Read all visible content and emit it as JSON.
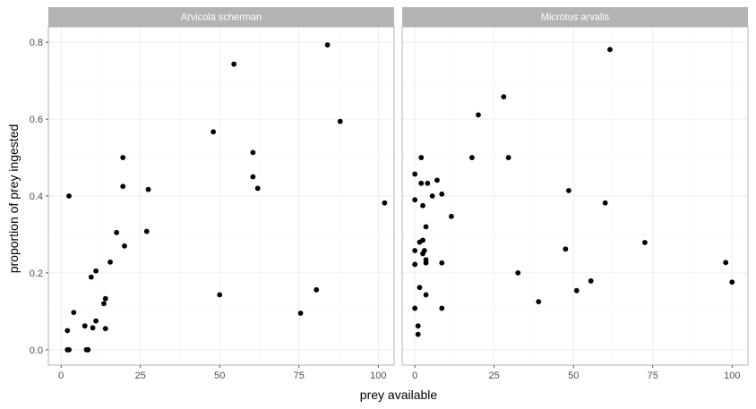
{
  "chart_data": {
    "type": "scatter",
    "xlabel": "prey available",
    "ylabel": "proportion of prey ingested",
    "xlim": [
      -4,
      105
    ],
    "ylim": [
      -0.04,
      0.84
    ],
    "x_ticks": [
      0,
      25,
      50,
      75,
      100
    ],
    "y_ticks": [
      0.0,
      0.2,
      0.4,
      0.6,
      0.8
    ],
    "x_tick_labels": [
      "0",
      "25",
      "50",
      "75",
      "100"
    ],
    "y_tick_labels": [
      "0.0",
      "0.2",
      "0.4",
      "0.6",
      "0.8"
    ],
    "grid": true,
    "point_color": "#000000",
    "panels": [
      {
        "title": "Arvicola scherman",
        "points": [
          {
            "x": 2,
            "y": 0.0
          },
          {
            "x": 2.5,
            "y": 0.0
          },
          {
            "x": 8,
            "y": 0.0
          },
          {
            "x": 8.5,
            "y": 0.0
          },
          {
            "x": 2,
            "y": 0.05
          },
          {
            "x": 4,
            "y": 0.097
          },
          {
            "x": 7.5,
            "y": 0.062
          },
          {
            "x": 10,
            "y": 0.057
          },
          {
            "x": 14,
            "y": 0.055
          },
          {
            "x": 11,
            "y": 0.075
          },
          {
            "x": 13.5,
            "y": 0.12
          },
          {
            "x": 14,
            "y": 0.133
          },
          {
            "x": 9.5,
            "y": 0.189
          },
          {
            "x": 11,
            "y": 0.205
          },
          {
            "x": 15.5,
            "y": 0.228
          },
          {
            "x": 20,
            "y": 0.27
          },
          {
            "x": 17.5,
            "y": 0.305
          },
          {
            "x": 27,
            "y": 0.308
          },
          {
            "x": 2.5,
            "y": 0.4
          },
          {
            "x": 19.5,
            "y": 0.5
          },
          {
            "x": 19.5,
            "y": 0.425
          },
          {
            "x": 27.5,
            "y": 0.417
          },
          {
            "x": 48,
            "y": 0.567
          },
          {
            "x": 54.5,
            "y": 0.743
          },
          {
            "x": 60.5,
            "y": 0.513
          },
          {
            "x": 60.5,
            "y": 0.45
          },
          {
            "x": 62,
            "y": 0.42
          },
          {
            "x": 50,
            "y": 0.143
          },
          {
            "x": 75.5,
            "y": 0.095
          },
          {
            "x": 80.5,
            "y": 0.156
          },
          {
            "x": 84,
            "y": 0.793
          },
          {
            "x": 88,
            "y": 0.594
          },
          {
            "x": 102,
            "y": 0.382
          }
        ]
      },
      {
        "title": "Microtus arvalis",
        "points": [
          {
            "x": 0,
            "y": 0.457
          },
          {
            "x": 0,
            "y": 0.39
          },
          {
            "x": 0,
            "y": 0.258
          },
          {
            "x": 0,
            "y": 0.222
          },
          {
            "x": 0,
            "y": 0.108
          },
          {
            "x": 1,
            "y": 0.04
          },
          {
            "x": 1,
            "y": 0.062
          },
          {
            "x": 1.5,
            "y": 0.162
          },
          {
            "x": 1.5,
            "y": 0.28
          },
          {
            "x": 2,
            "y": 0.5
          },
          {
            "x": 2,
            "y": 0.433
          },
          {
            "x": 2.5,
            "y": 0.375
          },
          {
            "x": 2.5,
            "y": 0.285
          },
          {
            "x": 2.5,
            "y": 0.25
          },
          {
            "x": 3,
            "y": 0.258
          },
          {
            "x": 3.5,
            "y": 0.32
          },
          {
            "x": 3.5,
            "y": 0.234
          },
          {
            "x": 3.5,
            "y": 0.226
          },
          {
            "x": 4,
            "y": 0.433
          },
          {
            "x": 3.5,
            "y": 0.143
          },
          {
            "x": 5.5,
            "y": 0.4
          },
          {
            "x": 7,
            "y": 0.441
          },
          {
            "x": 8.5,
            "y": 0.405
          },
          {
            "x": 8.5,
            "y": 0.226
          },
          {
            "x": 8.5,
            "y": 0.108
          },
          {
            "x": 11.5,
            "y": 0.347
          },
          {
            "x": 18,
            "y": 0.5
          },
          {
            "x": 20,
            "y": 0.611
          },
          {
            "x": 28,
            "y": 0.658
          },
          {
            "x": 29.5,
            "y": 0.5
          },
          {
            "x": 32.5,
            "y": 0.2
          },
          {
            "x": 39,
            "y": 0.125
          },
          {
            "x": 47.5,
            "y": 0.262
          },
          {
            "x": 48.5,
            "y": 0.414
          },
          {
            "x": 51,
            "y": 0.154
          },
          {
            "x": 55.5,
            "y": 0.179
          },
          {
            "x": 60,
            "y": 0.382
          },
          {
            "x": 61.5,
            "y": 0.781
          },
          {
            "x": 72.5,
            "y": 0.279
          },
          {
            "x": 98,
            "y": 0.227
          },
          {
            "x": 100,
            "y": 0.176
          }
        ]
      }
    ]
  }
}
